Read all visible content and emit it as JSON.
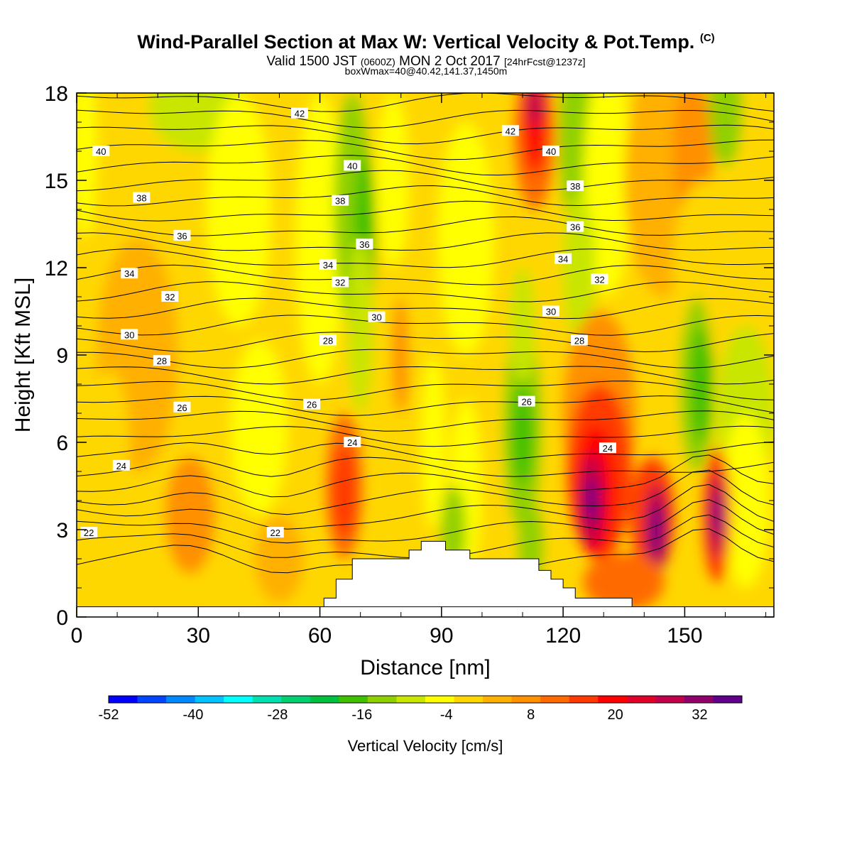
{
  "title": {
    "main": "Wind-Parallel Section at Max W: Vertical Velocity & Pot.Temp.",
    "copyright": "(C)",
    "valid_prefix": "Valid 1500 JST",
    "valid_z": "(0600Z)",
    "valid_date": "MON 2 Oct 2017",
    "forecast": "[24hrFcst@1237z]",
    "box_info": "boxWmax=40@40.42,141.37,1450m"
  },
  "colorbar": {
    "title": "Vertical Velocity [cm/s]",
    "tick_labels": [
      "-52",
      "-40",
      "-28",
      "-16",
      "-4",
      "8",
      "20",
      "32"
    ],
    "colors": [
      "#0000ff",
      "#0045ff",
      "#0088ff",
      "#00c3ff",
      "#00ffff",
      "#00e0b0",
      "#00d070",
      "#00c040",
      "#40c000",
      "#90d000",
      "#c8e600",
      "#ffff00",
      "#ffd700",
      "#ffb000",
      "#ff9000",
      "#ff6a00",
      "#ff3a00",
      "#ff0000",
      "#e0002a",
      "#c0004a",
      "#90006a",
      "#60008a"
    ]
  },
  "chart_data": {
    "type": "heatmap",
    "title": "Wind-Parallel Section at Max W: Vertical Velocity & Pot.Temp.",
    "xlabel": "Distance [nm]",
    "ylabel": "Height [Kft MSL]",
    "xlim": [
      0,
      172
    ],
    "ylim": [
      0,
      18
    ],
    "x_ticks": [
      0,
      30,
      60,
      90,
      120,
      150
    ],
    "y_ticks": [
      0,
      3,
      6,
      9,
      12,
      15,
      18
    ],
    "colorbar_range": [
      -52,
      38
    ],
    "colorbar_step": 4,
    "shaded_variable": "Vertical Velocity [cm/s]",
    "contour_variable": "Potential temperature",
    "contour_labels": [
      {
        "text": "42",
        "x": 55,
        "y": 17.3
      },
      {
        "text": "42",
        "x": 107,
        "y": 16.7
      },
      {
        "text": "40",
        "x": 6,
        "y": 16.0
      },
      {
        "text": "40",
        "x": 68,
        "y": 15.5
      },
      {
        "text": "40",
        "x": 117,
        "y": 16.0
      },
      {
        "text": "38",
        "x": 16,
        "y": 14.4
      },
      {
        "text": "38",
        "x": 65,
        "y": 14.3
      },
      {
        "text": "38",
        "x": 123,
        "y": 14.8
      },
      {
        "text": "36",
        "x": 26,
        "y": 13.1
      },
      {
        "text": "36",
        "x": 71,
        "y": 12.8
      },
      {
        "text": "36",
        "x": 123,
        "y": 13.4
      },
      {
        "text": "34",
        "x": 13,
        "y": 11.8
      },
      {
        "text": "34",
        "x": 62,
        "y": 12.1
      },
      {
        "text": "34",
        "x": 120,
        "y": 12.3
      },
      {
        "text": "32",
        "x": 23,
        "y": 11.0
      },
      {
        "text": "32",
        "x": 65,
        "y": 11.5
      },
      {
        "text": "32",
        "x": 129,
        "y": 11.6
      },
      {
        "text": "30",
        "x": 13,
        "y": 9.7
      },
      {
        "text": "30",
        "x": 74,
        "y": 10.3
      },
      {
        "text": "30",
        "x": 117,
        "y": 10.5
      },
      {
        "text": "28",
        "x": 21,
        "y": 8.8
      },
      {
        "text": "28",
        "x": 62,
        "y": 9.5
      },
      {
        "text": "28",
        "x": 124,
        "y": 9.5
      },
      {
        "text": "26",
        "x": 26,
        "y": 7.2
      },
      {
        "text": "26",
        "x": 58,
        "y": 7.3
      },
      {
        "text": "26",
        "x": 111,
        "y": 7.4
      },
      {
        "text": "24",
        "x": 11,
        "y": 5.2
      },
      {
        "text": "24",
        "x": 68,
        "y": 6.0
      },
      {
        "text": "24",
        "x": 131,
        "y": 5.8
      },
      {
        "text": "22",
        "x": 3,
        "y": 2.9
      },
      {
        "text": "22",
        "x": 49,
        "y": 2.9
      }
    ],
    "terrain": [
      [
        61,
        0.35
      ],
      [
        61,
        0.65
      ],
      [
        64,
        0.65
      ],
      [
        64,
        1.3
      ],
      [
        68,
        1.3
      ],
      [
        68,
        2.0
      ],
      [
        73,
        2.0
      ],
      [
        82,
        2.0
      ],
      [
        82,
        2.3
      ],
      [
        85,
        2.3
      ],
      [
        85,
        2.6
      ],
      [
        91,
        2.6
      ],
      [
        91,
        2.3
      ],
      [
        97,
        2.3
      ],
      [
        97,
        2.0
      ],
      [
        114,
        2.0
      ],
      [
        114,
        1.6
      ],
      [
        117,
        1.6
      ],
      [
        117,
        1.3
      ],
      [
        120,
        1.3
      ],
      [
        120,
        1.0
      ],
      [
        123,
        1.0
      ],
      [
        123,
        0.65
      ],
      [
        137,
        0.65
      ],
      [
        137,
        0.35
      ]
    ]
  }
}
